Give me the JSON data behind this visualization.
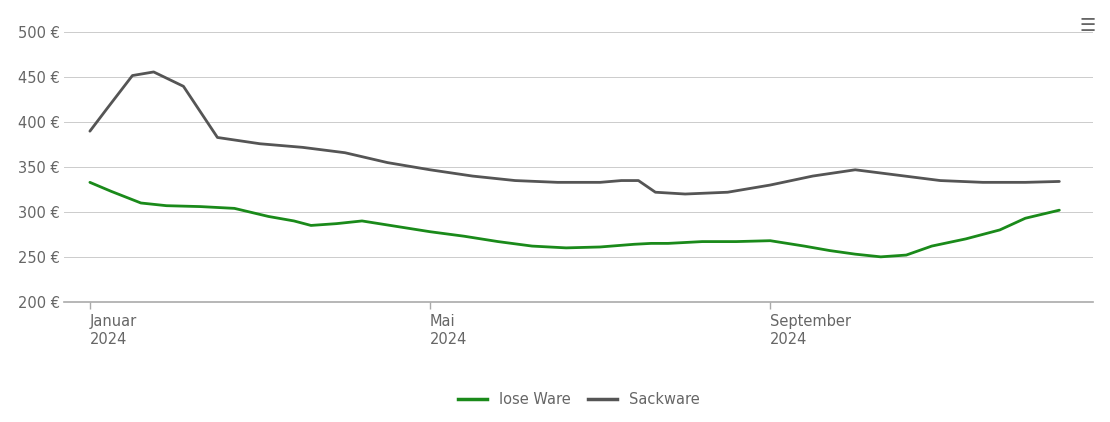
{
  "background_color": "#ffffff",
  "grid_color": "#cccccc",
  "ylim": [
    200,
    515
  ],
  "yticks": [
    200,
    250,
    300,
    350,
    400,
    450,
    500
  ],
  "ytick_labels": [
    "200 €",
    "250 €",
    "300 €",
    "350 €",
    "400 €",
    "450 €",
    "500 €"
  ],
  "lose_ware_color": "#1a8a1a",
  "sackware_color": "#555555",
  "line_width": 2.0,
  "lose_ware_x": [
    0,
    0.25,
    0.6,
    0.9,
    1.3,
    1.7,
    2.1,
    2.4,
    2.6,
    2.9,
    3.2,
    3.6,
    4.0,
    4.4,
    4.8,
    5.2,
    5.6,
    6.0,
    6.4,
    6.6,
    6.8,
    7.2,
    7.6,
    8.0,
    8.4,
    8.7,
    9.0,
    9.3,
    9.6,
    9.9,
    10.3,
    10.7,
    11.0,
    11.4
  ],
  "lose_ware_y": [
    333,
    323,
    310,
    307,
    306,
    304,
    295,
    290,
    285,
    287,
    290,
    284,
    278,
    273,
    267,
    262,
    260,
    261,
    264,
    265,
    265,
    267,
    267,
    268,
    262,
    257,
    253,
    250,
    252,
    262,
    270,
    280,
    293,
    302
  ],
  "sackware_x": [
    0,
    0.2,
    0.5,
    0.75,
    1.1,
    1.5,
    2.0,
    2.5,
    3.0,
    3.5,
    4.0,
    4.5,
    5.0,
    5.5,
    6.0,
    6.25,
    6.45,
    6.65,
    7.0,
    7.5,
    8.0,
    8.5,
    9.0,
    9.5,
    10.0,
    10.5,
    11.0,
    11.4
  ],
  "sackware_y": [
    390,
    415,
    452,
    456,
    440,
    383,
    376,
    372,
    366,
    355,
    347,
    340,
    335,
    333,
    333,
    335,
    335,
    322,
    320,
    322,
    330,
    340,
    347,
    341,
    335,
    333,
    333,
    334
  ],
  "xtick_positions": [
    0,
    4,
    8
  ],
  "xtick_labels": [
    "Januar\n2024",
    "Mai\n2024",
    "September\n2024"
  ],
  "legend_items": [
    "lose Ware",
    "Sackware"
  ],
  "legend_colors": [
    "#1a8a1a",
    "#555555"
  ],
  "menu_icon_color": "#666666",
  "axis_line_color": "#aaaaaa",
  "tick_label_color": "#666666",
  "tick_label_fontsize": 10.5,
  "legend_fontsize": 10.5,
  "xlim_left": -0.3,
  "xlim_right": 11.8
}
